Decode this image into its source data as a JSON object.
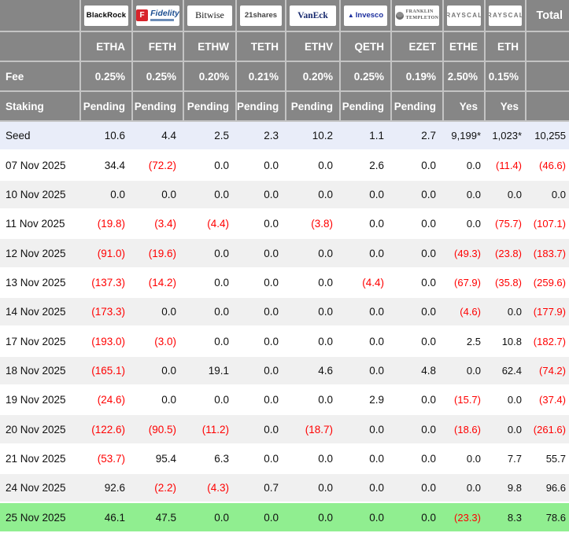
{
  "chart_data": {
    "type": "table",
    "total_label": "Total",
    "fee_label": "Fee",
    "staking_label": "Staking",
    "colors": {
      "header_bg": "#868686",
      "row_alt_bg": "#f0f0f0",
      "seed_row_bg": "#e9edf9",
      "latest_row_bg": "#90ee90",
      "negative_text": "#ff0000",
      "fidelity_red": "#d8232a",
      "navy_logo": "#1c2f9e"
    },
    "providers": [
      {
        "name": "BlackRock",
        "logo_style": "blackrock",
        "logo_text": "BlackRock",
        "ticker": "ETHA",
        "fee": "0.25%",
        "staking": "Pending"
      },
      {
        "name": "Fidelity",
        "logo_style": "fidelity",
        "logo_f": "F",
        "logo_text": "Fidelity",
        "ticker": "FETH",
        "fee": "0.25%",
        "staking": "Pending"
      },
      {
        "name": "Bitwise",
        "logo_style": "bitwise",
        "logo_text": "Bitwise",
        "ticker": "ETHW",
        "fee": "0.20%",
        "staking": "Pending"
      },
      {
        "name": "21shares",
        "logo_style": "21shares",
        "logo_text": "21shares",
        "ticker": "TETH",
        "fee": "0.21%",
        "staking": "Pending"
      },
      {
        "name": "VanEck",
        "logo_style": "vaneck",
        "logo_text": "VanEck",
        "ticker": "ETHV",
        "fee": "0.20%",
        "staking": "Pending"
      },
      {
        "name": "Invesco",
        "logo_style": "invesco",
        "logo_text": "Invesco",
        "ticker": "QETH",
        "fee": "0.25%",
        "staking": "Pending"
      },
      {
        "name": "Franklin Templeton",
        "logo_style": "franklin",
        "logo_line1": "FRANKLIN",
        "logo_line2": "TEMPLETON",
        "ticker": "EZET",
        "fee": "0.19%",
        "staking": "Pending"
      },
      {
        "name": "Grayscale",
        "logo_style": "grayscale",
        "logo_text": "GRAYSCALE",
        "ticker": "ETHE",
        "fee": "2.50%",
        "staking": "Yes"
      },
      {
        "name": "Grayscale",
        "logo_style": "grayscale",
        "logo_text": "GRAYSCALE",
        "ticker": "ETH",
        "fee": "0.15%",
        "staking": "Yes"
      }
    ],
    "rows": [
      {
        "label": "Seed",
        "highlight": "seed",
        "values": [
          "10.6",
          "4.4",
          "2.5",
          "2.3",
          "10.2",
          "1.1",
          "2.7",
          "9,199*",
          "1,023*",
          "10,255"
        ]
      },
      {
        "label": "07 Nov 2025",
        "highlight": "none",
        "values": [
          "34.4",
          "(72.2)",
          "0.0",
          "0.0",
          "0.0",
          "2.6",
          "0.0",
          "0.0",
          "(11.4)",
          "(46.6)"
        ]
      },
      {
        "label": "10 Nov 2025",
        "highlight": "none",
        "values": [
          "0.0",
          "0.0",
          "0.0",
          "0.0",
          "0.0",
          "0.0",
          "0.0",
          "0.0",
          "0.0",
          "0.0"
        ]
      },
      {
        "label": "11 Nov 2025",
        "highlight": "none",
        "values": [
          "(19.8)",
          "(3.4)",
          "(4.4)",
          "0.0",
          "(3.8)",
          "0.0",
          "0.0",
          "0.0",
          "(75.7)",
          "(107.1)"
        ]
      },
      {
        "label": "12 Nov 2025",
        "highlight": "none",
        "values": [
          "(91.0)",
          "(19.6)",
          "0.0",
          "0.0",
          "0.0",
          "0.0",
          "0.0",
          "(49.3)",
          "(23.8)",
          "(183.7)"
        ]
      },
      {
        "label": "13 Nov 2025",
        "highlight": "none",
        "values": [
          "(137.3)",
          "(14.2)",
          "0.0",
          "0.0",
          "0.0",
          "(4.4)",
          "0.0",
          "(67.9)",
          "(35.8)",
          "(259.6)"
        ]
      },
      {
        "label": "14 Nov 2025",
        "highlight": "none",
        "values": [
          "(173.3)",
          "0.0",
          "0.0",
          "0.0",
          "0.0",
          "0.0",
          "0.0",
          "(4.6)",
          "0.0",
          "(177.9)"
        ]
      },
      {
        "label": "17 Nov 2025",
        "highlight": "none",
        "values": [
          "(193.0)",
          "(3.0)",
          "0.0",
          "0.0",
          "0.0",
          "0.0",
          "0.0",
          "2.5",
          "10.8",
          "(182.7)"
        ]
      },
      {
        "label": "18 Nov 2025",
        "highlight": "none",
        "values": [
          "(165.1)",
          "0.0",
          "19.1",
          "0.0",
          "4.6",
          "0.0",
          "4.8",
          "0.0",
          "62.4",
          "(74.2)"
        ]
      },
      {
        "label": "19 Nov 2025",
        "highlight": "none",
        "values": [
          "(24.6)",
          "0.0",
          "0.0",
          "0.0",
          "0.0",
          "2.9",
          "0.0",
          "(15.7)",
          "0.0",
          "(37.4)"
        ]
      },
      {
        "label": "20 Nov 2025",
        "highlight": "none",
        "values": [
          "(122.6)",
          "(90.5)",
          "(11.2)",
          "0.0",
          "(18.7)",
          "0.0",
          "0.0",
          "(18.6)",
          "0.0",
          "(261.6)"
        ]
      },
      {
        "label": "21 Nov 2025",
        "highlight": "none",
        "values": [
          "(53.7)",
          "95.4",
          "6.3",
          "0.0",
          "0.0",
          "0.0",
          "0.0",
          "0.0",
          "7.7",
          "55.7"
        ]
      },
      {
        "label": "24 Nov 2025",
        "highlight": "none",
        "values": [
          "92.6",
          "(2.2)",
          "(4.3)",
          "0.7",
          "0.0",
          "0.0",
          "0.0",
          "0.0",
          "9.8",
          "96.6"
        ]
      },
      {
        "label": "25 Nov 2025",
        "highlight": "green",
        "values": [
          "46.1",
          "47.5",
          "0.0",
          "0.0",
          "0.0",
          "0.0",
          "0.0",
          "(23.3)",
          "8.3",
          "78.6"
        ]
      }
    ]
  }
}
